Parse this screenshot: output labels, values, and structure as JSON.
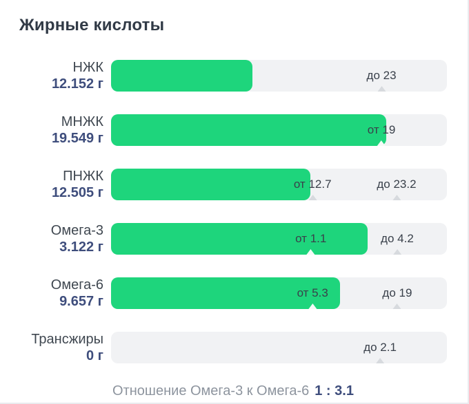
{
  "title": "Жирные кислоты",
  "colors": {
    "bar_fill": "#1ed57c",
    "track": "#f1f2f4",
    "value_accent": "#3e4d7c",
    "name_text": "#3f4750",
    "marker_text": "#39404a",
    "footer_muted": "#8d949e",
    "card_border": "#e9ebee"
  },
  "rows": [
    {
      "name": "НЖК",
      "value": "12.152 г",
      "bar_percent": 42.0,
      "markers": [
        {
          "label": "до 23",
          "percent": 80.5,
          "on_bar": false
        }
      ]
    },
    {
      "name": "МНЖК",
      "value": "19.549 г",
      "bar_percent": 82.0,
      "markers": [
        {
          "label": "от 19",
          "percent": 80.5,
          "on_bar": true
        }
      ]
    },
    {
      "name": "ПНЖК",
      "value": "12.505 г",
      "bar_percent": 59.3,
      "markers": [
        {
          "label": "от 12.7",
          "percent": 60.0,
          "on_bar": false
        },
        {
          "label": "до 23.2",
          "percent": 85.0,
          "on_bar": false
        }
      ]
    },
    {
      "name": "Омега-3",
      "value": "3.122 г",
      "bar_percent": 76.4,
      "markers": [
        {
          "label": "от 1.1",
          "percent": 59.5,
          "on_bar": true
        },
        {
          "label": "до 4.2",
          "percent": 85.2,
          "on_bar": false
        }
      ]
    },
    {
      "name": "Омега-6",
      "value": "9.657 г",
      "bar_percent": 68.2,
      "markers": [
        {
          "label": "от 5.3",
          "percent": 60.0,
          "on_bar": true
        },
        {
          "label": "до 19",
          "percent": 85.2,
          "on_bar": false
        }
      ]
    },
    {
      "name": "Трансжиры",
      "value": "0 г",
      "bar_percent": 0,
      "markers": [
        {
          "label": "до 2.1",
          "percent": 80.1,
          "on_bar": false
        }
      ]
    }
  ],
  "footer": {
    "label": "Отношение Омега-3 к Омега-6",
    "value": "1 : 3.1"
  },
  "chart_data": {
    "type": "bar",
    "orientation": "horizontal",
    "title": "Жирные кислоты",
    "categories": [
      "НЖК",
      "МНЖК",
      "ПНЖК",
      "Омега-3",
      "Омега-6",
      "Трансжиры"
    ],
    "values": [
      12.152,
      19.549,
      12.505,
      3.122,
      9.657,
      0
    ],
    "unit": "г",
    "norms": [
      {
        "category": "НЖК",
        "max": 23
      },
      {
        "category": "МНЖК",
        "min": 19
      },
      {
        "category": "ПНЖК",
        "min": 12.7,
        "max": 23.2
      },
      {
        "category": "Омега-3",
        "min": 1.1,
        "max": 4.2
      },
      {
        "category": "Омега-6",
        "min": 5.3,
        "max": 19
      },
      {
        "category": "Трансжиры",
        "max": 2.1
      }
    ],
    "annotation": "Отношение Омега-3 к Омега-6 1 : 3.1",
    "legend": "off",
    "grid": "off"
  }
}
